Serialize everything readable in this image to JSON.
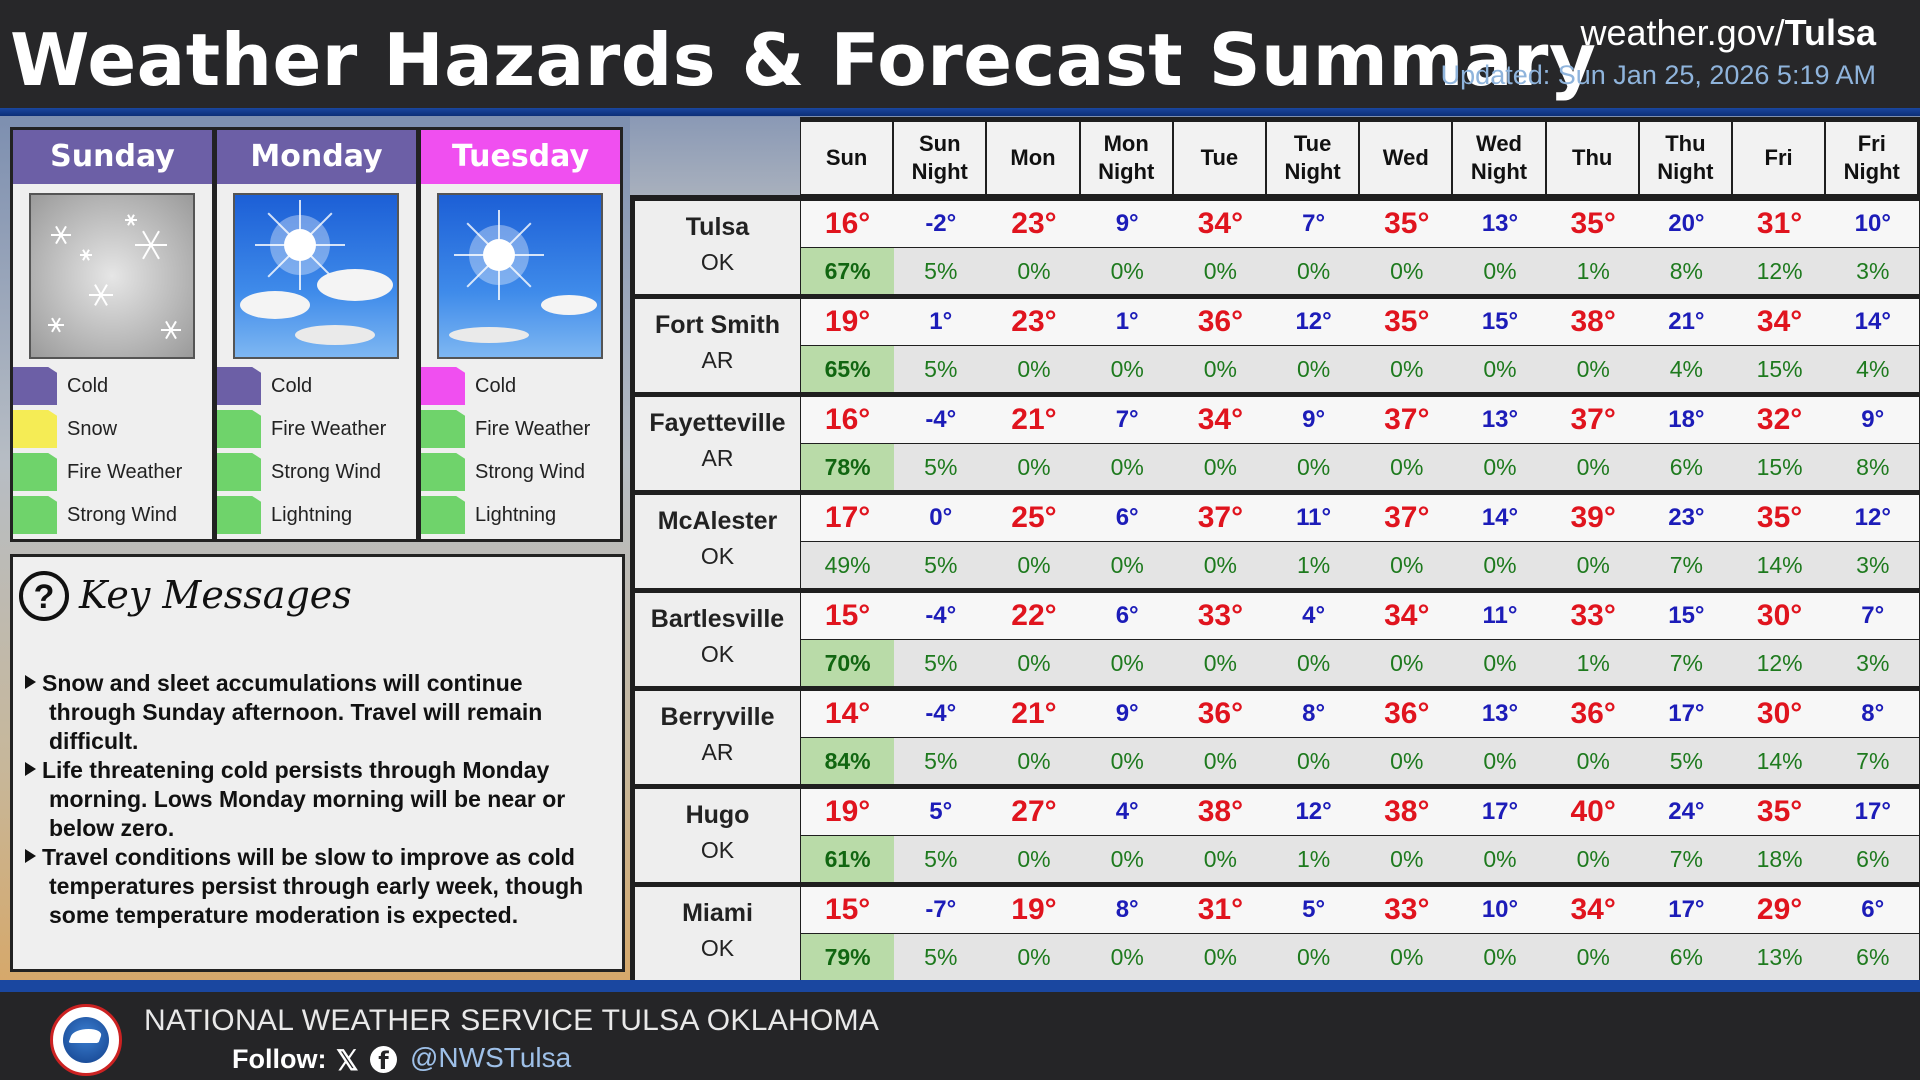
{
  "header": {
    "title": "Weather Hazards & Forecast Summary",
    "site_prefix": "weather.gov/",
    "site_suffix": "Tulsa",
    "updated": "Updated: Sun Jan 25, 2026 5:19 AM"
  },
  "days": [
    {
      "name": "Sunday",
      "color": "#6c5fa6",
      "image": "snow-icon",
      "hazards": [
        {
          "label": "Cold",
          "color": "#6c5fa6"
        },
        {
          "label": "Snow",
          "color": "#f5ec55"
        },
        {
          "label": "Fire Weather",
          "color": "#6fd36b"
        },
        {
          "label": "Strong Wind",
          "color": "#6fd36b"
        }
      ]
    },
    {
      "name": "Monday",
      "color": "#6c5fa6",
      "image": "sun-clouds-icon",
      "hazards": [
        {
          "label": "Cold",
          "color": "#6c5fa6"
        },
        {
          "label": "Fire Weather",
          "color": "#6fd36b"
        },
        {
          "label": "Strong Wind",
          "color": "#6fd36b"
        },
        {
          "label": "Lightning",
          "color": "#6fd36b"
        }
      ]
    },
    {
      "name": "Tuesday",
      "color": "#f04ff0",
      "image": "sunny-icon",
      "hazards": [
        {
          "label": "Cold",
          "color": "#f04ff0"
        },
        {
          "label": "Fire Weather",
          "color": "#6fd36b"
        },
        {
          "label": "Strong Wind",
          "color": "#6fd36b"
        },
        {
          "label": "Lightning",
          "color": "#6fd36b"
        }
      ]
    }
  ],
  "key_messages": {
    "title": "Key Messages",
    "icon": "question-icon",
    "lines": [
      {
        "bullet": true,
        "text": "Snow and sleet accumulations will continue"
      },
      {
        "bullet": false,
        "text": "through Sunday afternoon. Travel will remain"
      },
      {
        "bullet": false,
        "text": "difficult."
      },
      {
        "bullet": true,
        "text": "Life threatening cold persists through Monday"
      },
      {
        "bullet": false,
        "text": "morning. Lows Monday morning will be near or"
      },
      {
        "bullet": false,
        "text": "below zero."
      },
      {
        "bullet": true,
        "text": "Travel conditions will be slow to improve as cold"
      },
      {
        "bullet": false,
        "text": "temperatures persist through early week, though"
      },
      {
        "bullet": false,
        "text": "some temperature moderation is expected."
      }
    ]
  },
  "table": {
    "columns": [
      [
        "Sun"
      ],
      [
        "Sun",
        "Night"
      ],
      [
        "Mon"
      ],
      [
        "Mon",
        "Night"
      ],
      [
        "Tue"
      ],
      [
        "Tue",
        "Night"
      ],
      [
        "Wed"
      ],
      [
        "Wed",
        "Night"
      ],
      [
        "Thu"
      ],
      [
        "Thu",
        "Night"
      ],
      [
        "Fri"
      ],
      [
        "Fri",
        "Night"
      ]
    ],
    "rows": [
      {
        "city": "Tulsa",
        "state": "OK",
        "temps": [
          "16°",
          "-2°",
          "23°",
          "9°",
          "34°",
          "7°",
          "35°",
          "13°",
          "35°",
          "20°",
          "31°",
          "10°"
        ],
        "pops": [
          "67%",
          "5%",
          "0%",
          "0%",
          "0%",
          "0%",
          "0%",
          "0%",
          "1%",
          "8%",
          "12%",
          "3%"
        ]
      },
      {
        "city": "Fort Smith",
        "state": "AR",
        "temps": [
          "19°",
          "1°",
          "23°",
          "1°",
          "36°",
          "12°",
          "35°",
          "15°",
          "38°",
          "21°",
          "34°",
          "14°"
        ],
        "pops": [
          "65%",
          "5%",
          "0%",
          "0%",
          "0%",
          "0%",
          "0%",
          "0%",
          "0%",
          "4%",
          "15%",
          "4%"
        ]
      },
      {
        "city": "Fayetteville",
        "state": "AR",
        "temps": [
          "16°",
          "-4°",
          "21°",
          "7°",
          "34°",
          "9°",
          "37°",
          "13°",
          "37°",
          "18°",
          "32°",
          "9°"
        ],
        "pops": [
          "78%",
          "5%",
          "0%",
          "0%",
          "0%",
          "0%",
          "0%",
          "0%",
          "0%",
          "6%",
          "15%",
          "8%"
        ]
      },
      {
        "city": "McAlester",
        "state": "OK",
        "temps": [
          "17°",
          "0°",
          "25°",
          "6°",
          "37°",
          "11°",
          "37°",
          "14°",
          "39°",
          "23°",
          "35°",
          "12°"
        ],
        "pops": [
          "49%",
          "5%",
          "0%",
          "0%",
          "0%",
          "1%",
          "0%",
          "0%",
          "0%",
          "7%",
          "14%",
          "3%"
        ]
      },
      {
        "city": "Bartlesville",
        "state": "OK",
        "temps": [
          "15°",
          "-4°",
          "22°",
          "6°",
          "33°",
          "4°",
          "34°",
          "11°",
          "33°",
          "15°",
          "30°",
          "7°"
        ],
        "pops": [
          "70%",
          "5%",
          "0%",
          "0%",
          "0%",
          "0%",
          "0%",
          "0%",
          "1%",
          "7%",
          "12%",
          "3%"
        ]
      },
      {
        "city": "Berryville",
        "state": "AR",
        "temps": [
          "14°",
          "-4°",
          "21°",
          "9°",
          "36°",
          "8°",
          "36°",
          "13°",
          "36°",
          "17°",
          "30°",
          "8°"
        ],
        "pops": [
          "84%",
          "5%",
          "0%",
          "0%",
          "0%",
          "0%",
          "0%",
          "0%",
          "0%",
          "5%",
          "14%",
          "7%"
        ]
      },
      {
        "city": "Hugo",
        "state": "OK",
        "temps": [
          "19°",
          "5°",
          "27°",
          "4°",
          "38°",
          "12°",
          "38°",
          "17°",
          "40°",
          "24°",
          "35°",
          "17°"
        ],
        "pops": [
          "61%",
          "5%",
          "0%",
          "0%",
          "0%",
          "1%",
          "0%",
          "0%",
          "0%",
          "7%",
          "18%",
          "6%"
        ]
      },
      {
        "city": "Miami",
        "state": "OK",
        "temps": [
          "15°",
          "-7°",
          "19°",
          "8°",
          "31°",
          "5°",
          "33°",
          "10°",
          "34°",
          "17°",
          "29°",
          "6°"
        ],
        "pops": [
          "79%",
          "5%",
          "0%",
          "0%",
          "0%",
          "0%",
          "0%",
          "0%",
          "0%",
          "6%",
          "13%",
          "6%"
        ]
      }
    ],
    "colors": {
      "high": "#e0141e",
      "low": "#1c1cb8",
      "precip": "#1e7a1e",
      "precip_highlight": "#b9dba8"
    }
  },
  "footer": {
    "office": "NATIONAL WEATHER SERVICE TULSA OKLAHOMA",
    "follow": "Follow:",
    "x_icon": "x-icon",
    "fb_icon": "facebook-icon",
    "handle": "@NWSTulsa"
  }
}
